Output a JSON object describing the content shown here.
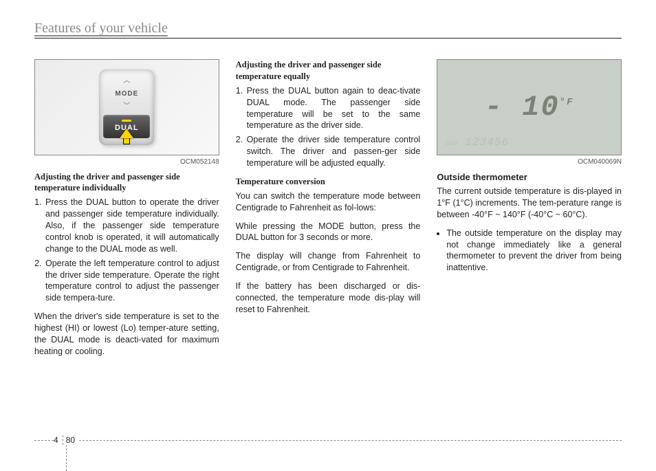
{
  "header": {
    "title": "Features of your vehicle"
  },
  "col1": {
    "fig_code": "OCM052148",
    "mode_label": "MODE",
    "dual_label": "DUAL",
    "h1": "Adjusting the driver and passenger side temperature individually",
    "li1": "Press the DUAL button to operate the driver and passenger side temperature individually. Also, if the passenger side temperature control knob is operated, it will automatically change to the DUAL mode as well.",
    "li2": "Operate the left temperature control to adjust the driver side temperature. Operate the right temperature control to adjust the passenger side tempera-ture.",
    "p1": "When the driver's side temperature is set to the highest (HI) or lowest (Lo) temper-ature setting, the DUAL mode is deacti-vated for maximum heating or cooling."
  },
  "col2": {
    "h1": "Adjusting the driver and passenger side temperature equally",
    "li1": "Press the DUAL button again to deac-tivate DUAL mode. The passenger side temperature will be set to the same temperature as the driver side.",
    "li2": "Operate the driver side temperature control switch. The driver and passen-ger side temperature will be adjusted equally.",
    "h2": "Temperature conversion",
    "p1": "You can switch the temperature mode between Centigrade to Fahrenheit as fol-lows:",
    "p2": "While pressing the MODE button, press the DUAL button for 3 seconds or more.",
    "p3": "The display will change from Fahrenheit to Centigrade, or from Centigrade to Fahrenheit.",
    "p4": "If the battery has been discharged or dis-connected, the temperature mode dis-play will reset to Fahrenheit."
  },
  "col3": {
    "fig_code": "OCM040069N",
    "lcd_value": "- 10",
    "lcd_unit": "°F",
    "lcd_odo": "123456",
    "lcd_odo_lbl": "ODO",
    "h1": "Outside thermometer",
    "p1": "The current outside temperature is dis-played in 1°F (1°C) increments. The tem-perature range is between -40°F ~ 140°F (-40°C ~ 60°C).",
    "li1": "The outside temperature on the display may not change immediately like a general thermometer to prevent the driver from being inattentive."
  },
  "footer": {
    "section": "4",
    "page": "80"
  },
  "colors": {
    "text": "#231f20",
    "header_gray": "#8a8a8a",
    "arrow": "#ffd500",
    "lcd_bg": "#c8cfc6",
    "lcd_fg": "#7a8378"
  }
}
